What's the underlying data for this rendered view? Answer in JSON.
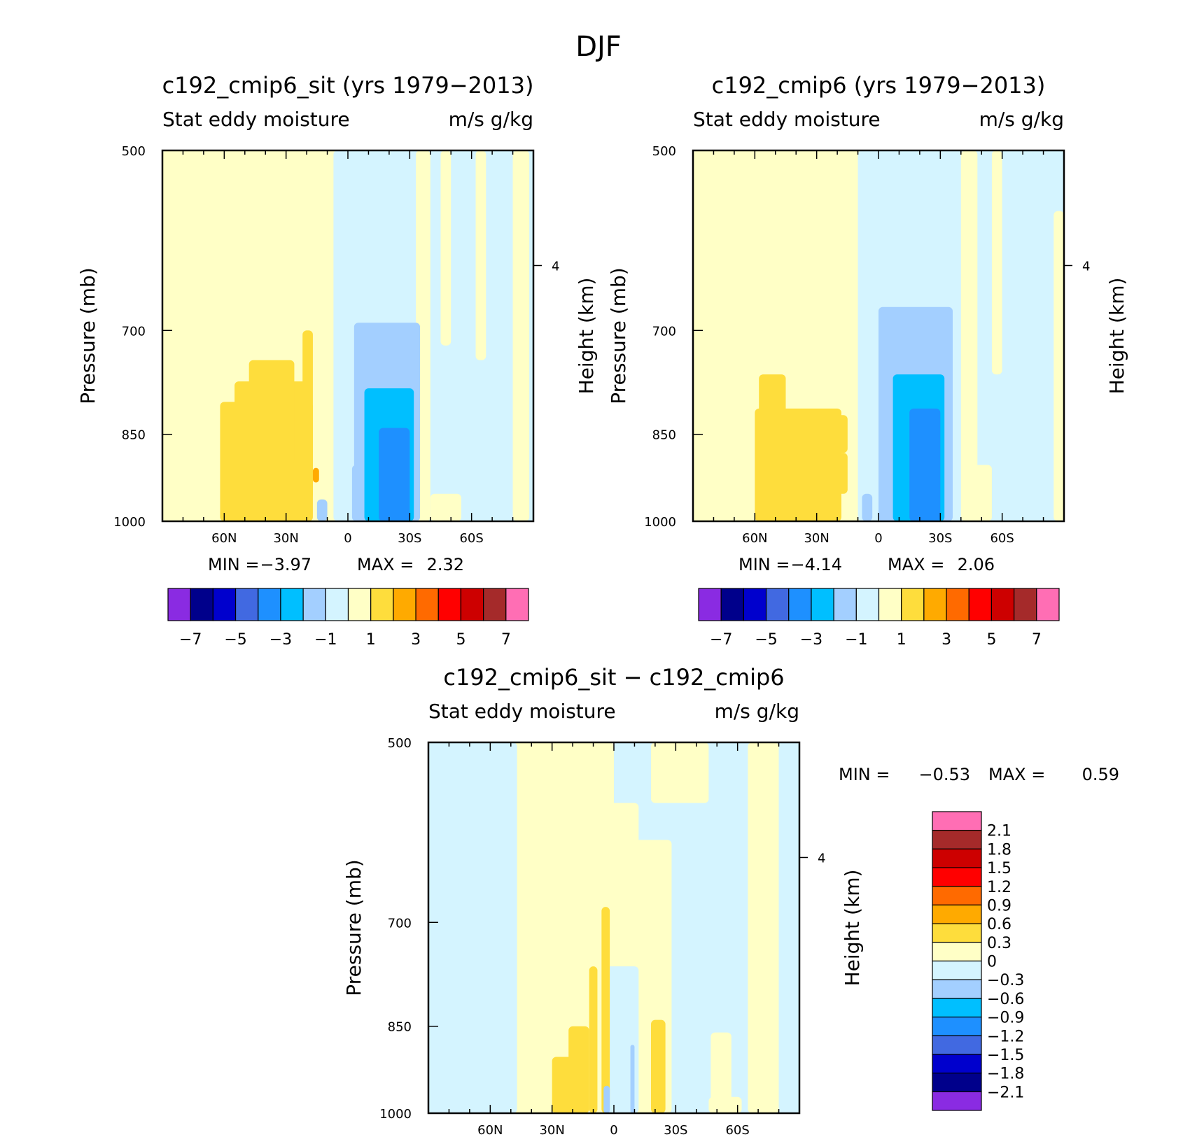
{
  "figure": {
    "title": "DJF"
  },
  "palette": [
    "#8a2be2",
    "#00008b",
    "#0000cd",
    "#4169e1",
    "#1e90ff",
    "#00bfff",
    "#a3cfff",
    "#d4f4ff",
    "#ffffc6",
    "#fedd3c",
    "#ffaa00",
    "#ff6a00",
    "#ff0000",
    "#cd0000",
    "#a52a2a",
    "#ff6eb4"
  ],
  "chart_data": [
    {
      "id": "top-left",
      "type": "contour",
      "title": "c192_cmip6_sit (yrs 1979−2013)",
      "subtitle_left": "Stat eddy moisture",
      "subtitle_right": "m/s g/kg",
      "ylabel": "Pressure (mb)",
      "ylabel_right": "Height (km)",
      "yticks": [
        "500",
        "700",
        "850",
        "1000"
      ],
      "ytick_values": [
        500,
        700,
        850,
        1000
      ],
      "ylim": [
        500,
        1000
      ],
      "height_ticks": [
        "4"
      ],
      "height_tick_value": 620,
      "xticks": [
        "60N",
        "30N",
        "0",
        "30S",
        "60S"
      ],
      "xtick_values": [
        60,
        30,
        0,
        -30,
        -60
      ],
      "xlim": [
        90,
        -90
      ],
      "min_label": "MIN =",
      "min_value": "−3.97",
      "max_label": "MAX =",
      "max_value": "2.32",
      "colorbar_labels": [
        "−7",
        "−5",
        "−3",
        "−1",
        "1",
        "3",
        "5",
        "7"
      ],
      "colorbar_levels": [
        -7,
        -6,
        -5,
        -4,
        -3,
        -2,
        -1,
        0,
        1,
        2,
        3,
        4,
        5,
        6,
        7
      ],
      "approx_regions": [
        {
          "level_index": 8,
          "label": "0 to 1",
          "extent": "most of the northern hemisphere, whole column"
        },
        {
          "level_index": 9,
          "label": "1 to 2",
          "extent": "60N-20N below 780 mb"
        },
        {
          "level_index": 10,
          "label": "2 to 3",
          "extent": "small patch near 15N, 920 mb"
        },
        {
          "level_index": 7,
          "label": "-1 to 0",
          "extent": "equator to 90S, whole column"
        },
        {
          "level_index": 6,
          "label": "-2 to -1",
          "extent": "5S-35S below 680 mb"
        },
        {
          "level_index": 5,
          "label": "-3 to -2",
          "extent": "10S-30S below 770 mb"
        },
        {
          "level_index": 4,
          "label": "-4 to -3",
          "extent": "22S-28S below 840 mb"
        }
      ]
    },
    {
      "id": "top-right",
      "type": "contour",
      "title": "c192_cmip6 (yrs 1979−2013)",
      "subtitle_left": "Stat eddy moisture",
      "subtitle_right": "m/s g/kg",
      "ylabel": "Pressure (mb)",
      "ylabel_right": "Height (km)",
      "yticks": [
        "500",
        "700",
        "850",
        "1000"
      ],
      "ytick_values": [
        500,
        700,
        850,
        1000
      ],
      "ylim": [
        500,
        1000
      ],
      "height_ticks": [
        "4"
      ],
      "height_tick_value": 620,
      "xticks": [
        "60N",
        "30N",
        "0",
        "30S",
        "60S"
      ],
      "xtick_values": [
        60,
        30,
        0,
        -30,
        -60
      ],
      "xlim": [
        90,
        -90
      ],
      "min_label": "MIN =",
      "min_value": "−4.14",
      "max_label": "MAX =",
      "max_value": "2.06",
      "colorbar_labels": [
        "−7",
        "−5",
        "−3",
        "−1",
        "1",
        "3",
        "5",
        "7"
      ],
      "colorbar_levels": [
        -7,
        -6,
        -5,
        -4,
        -3,
        -2,
        -1,
        0,
        1,
        2,
        3,
        4,
        5,
        6,
        7
      ],
      "approx_regions": [
        {
          "level_index": 8,
          "label": "0 to 1",
          "extent": "most of the northern hemisphere, whole column"
        },
        {
          "level_index": 9,
          "label": "1 to 2",
          "extent": "60N-10N below 800 mb"
        },
        {
          "level_index": 7,
          "label": "-1 to 0",
          "extent": "equator to 90S, whole column"
        },
        {
          "level_index": 6,
          "label": "-2 to -1",
          "extent": "0-35S below 670 mb"
        },
        {
          "level_index": 5,
          "label": "-3 to -2",
          "extent": "10S-30S below 750 mb"
        },
        {
          "level_index": 4,
          "label": "-4 to -3",
          "extent": "15S-30S below 800 mb"
        }
      ]
    },
    {
      "id": "bottom-diff",
      "type": "contour",
      "title": "c192_cmip6_sit − c192_cmip6",
      "subtitle_left": "Stat eddy moisture",
      "subtitle_right": "m/s g/kg",
      "ylabel": "Pressure (mb)",
      "ylabel_right": "Height (km)",
      "yticks": [
        "500",
        "700",
        "850",
        "1000"
      ],
      "ytick_values": [
        500,
        700,
        850,
        1000
      ],
      "ylim": [
        500,
        1000
      ],
      "height_ticks": [
        "4"
      ],
      "height_tick_value": 620,
      "xticks": [
        "60N",
        "30N",
        "0",
        "30S",
        "60S"
      ],
      "xtick_values": [
        60,
        30,
        0,
        -30,
        -60
      ],
      "xlim": [
        90,
        -90
      ],
      "min_label": "MIN =",
      "min_value": "−0.53",
      "max_label": "MAX =",
      "max_value": "0.59",
      "colorbar_labels": [
        "2.1",
        "1.8",
        "1.5",
        "1.2",
        "0.9",
        "0.6",
        "0.3",
        "0",
        "−0.3",
        "−0.6",
        "−0.9",
        "−1.2",
        "−1.5",
        "−1.8",
        "−2.1"
      ],
      "colorbar_levels": [
        2.1,
        1.8,
        1.5,
        1.2,
        0.9,
        0.6,
        0.3,
        0,
        -0.3,
        -0.6,
        -0.9,
        -1.2,
        -1.5,
        -1.8,
        -2.1
      ],
      "approx_regions": [
        {
          "level_index": 7,
          "label": "-0.3 to 0",
          "extent": "90N-45N and 45S-65S, 80S-90S"
        },
        {
          "level_index": 8,
          "label": "0 to 0.3",
          "extent": "45N-45S broad band"
        },
        {
          "level_index": 9,
          "label": "0.3 to 0.6",
          "extent": "narrow plumes near 30N-5N and 15S-25S below 700 mb"
        },
        {
          "level_index": 6,
          "label": "-0.6 to -0.3",
          "extent": "thin streaks near 0-10S below 900 mb"
        }
      ]
    }
  ]
}
